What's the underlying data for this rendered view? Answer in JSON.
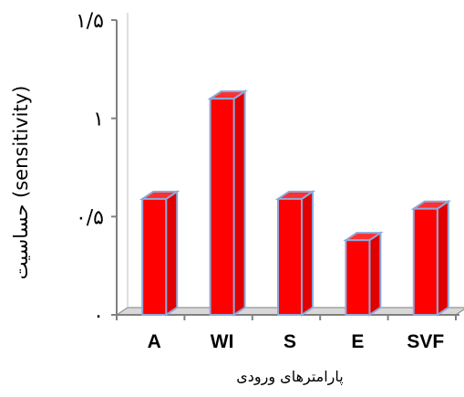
{
  "chart_data": {
    "type": "bar",
    "title": "",
    "categories": [
      "A",
      "WI",
      "S",
      "E",
      "SVF"
    ],
    "values": [
      0.59,
      1.1,
      0.59,
      0.38,
      0.54
    ],
    "xlabel": "پارامترهای ورودی",
    "ylabel": "حساسیت (sensitivity)",
    "ylim": [
      0,
      1.5
    ],
    "yticks": [
      0,
      0.5,
      1,
      1.5
    ],
    "ytick_labels": [
      "٠",
      "٠/۵",
      "١",
      "١/۵"
    ],
    "grid": false,
    "legend": "none",
    "colors": {
      "bar_front": "#ff0000",
      "bar_side": "#e00000",
      "bar_top": "#ff3030",
      "bar_edge": "#8fa8d8",
      "axis": "#808080"
    }
  }
}
